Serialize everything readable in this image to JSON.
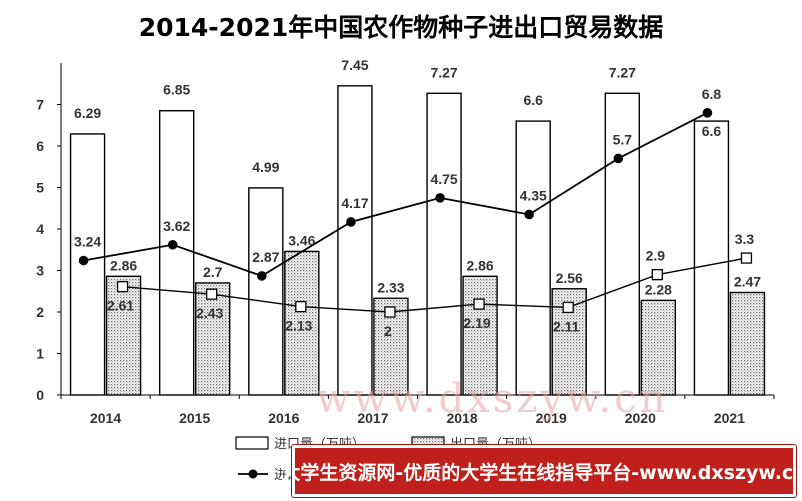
{
  "chart_data": {
    "type": "bar",
    "title": "2014-2021年中国农作物种子进出口贸易数据",
    "categories": [
      "2014",
      "2015",
      "2016",
      "2017",
      "2018",
      "2019",
      "2020",
      "2021"
    ],
    "ylim": [
      0,
      8
    ],
    "yticks": [
      0,
      1,
      2,
      3,
      4,
      5,
      6,
      7
    ],
    "grid": false,
    "legend_position": "bottom",
    "series": [
      {
        "name": "进口量（万吨）",
        "kind": "bar",
        "style": "white",
        "values": [
          6.29,
          6.85,
          4.99,
          7.45,
          7.27,
          6.6,
          7.27,
          6.6
        ]
      },
      {
        "name": "出口量（万吨）",
        "kind": "bar",
        "style": "dotted",
        "values": [
          2.86,
          2.7,
          3.46,
          2.33,
          2.86,
          2.56,
          2.28,
          2.47
        ]
      },
      {
        "name": "进口额",
        "kind": "line",
        "marker": "circle",
        "values": [
          3.24,
          3.62,
          2.87,
          4.17,
          4.75,
          4.35,
          5.7,
          6.8
        ]
      },
      {
        "name": "",
        "kind": "line",
        "marker": "square",
        "values": [
          2.61,
          2.43,
          2.13,
          2,
          2.19,
          2.11,
          2.9,
          3.3
        ]
      }
    ]
  },
  "watermark": "www.dxszyw.cn",
  "banner": {
    "text": "大学生资源网-优质的大学生在线指导平台-www.dxszyw.cn"
  },
  "colors": {
    "bar_stroke": "#000000",
    "line": "#000000",
    "banner_bg": "#c0201b"
  }
}
